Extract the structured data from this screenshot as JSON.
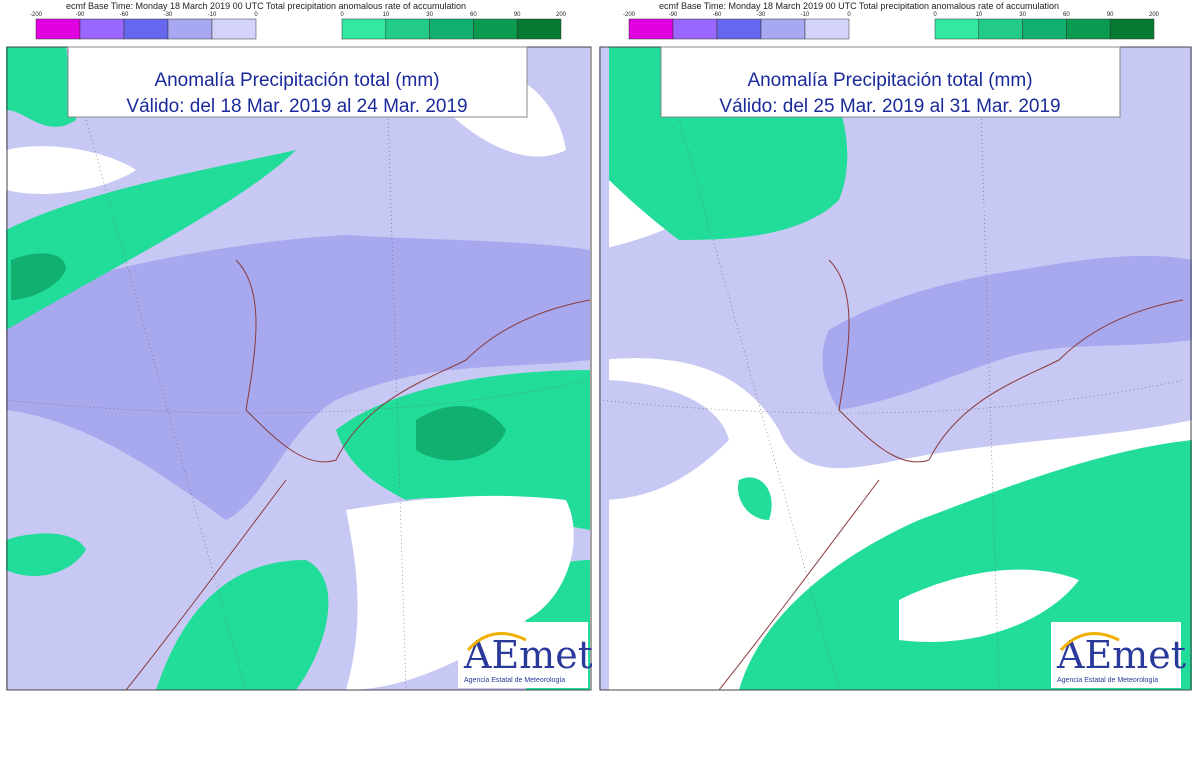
{
  "panels": [
    {
      "header": "ecmf  Base Time: Monday 18 March 2019 00 UTC Total precipitation anomalous rate of accumulation",
      "negative_scale": [
        "-200",
        "-90",
        "-60",
        "-30",
        "-10",
        "0"
      ],
      "positive_scale": [
        "0",
        "10",
        "30",
        "60",
        "90",
        "200"
      ],
      "title": [
        "Anomalía Precipitación total (mm)",
        "Válido: del 18 Mar. 2019 al 24 Mar. 2019"
      ],
      "logo": {
        "name": "AEmet",
        "subtitle": "Agencia Estatal de Meteorología"
      }
    },
    {
      "header": "ecmf  Base Time: Monday 18 March 2019 00 UTC Total precipitation anomalous rate of accumulation",
      "negative_scale": [
        "-200",
        "-90",
        "-60",
        "-30",
        "-10",
        "0"
      ],
      "positive_scale": [
        "0",
        "10",
        "30",
        "60",
        "90",
        "200"
      ],
      "title": [
        "Anomalía Precipitación total (mm)",
        "Válido: del 25 Mar. 2019 al 31 Mar. 2019"
      ],
      "logo": {
        "name": "AEmet",
        "subtitle": "Agencia Estatal de Meteorología"
      }
    }
  ]
}
